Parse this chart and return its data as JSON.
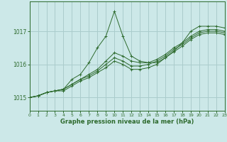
{
  "title": "Graphe pression niveau de la mer (hPa)",
  "bg_color": "#cce8e8",
  "grid_color": "#aacccc",
  "line_color": "#2d6a2d",
  "xlim": [
    0,
    23
  ],
  "ylim": [
    1014.6,
    1017.9
  ],
  "yticks": [
    1015,
    1016,
    1017
  ],
  "xticks": [
    0,
    1,
    2,
    3,
    4,
    5,
    6,
    7,
    8,
    9,
    10,
    11,
    12,
    13,
    14,
    15,
    16,
    17,
    18,
    19,
    20,
    21,
    22,
    23
  ],
  "series": [
    [
      1015.0,
      1015.05,
      1015.15,
      1015.2,
      1015.25,
      1015.55,
      1015.7,
      1016.05,
      1016.5,
      1016.85,
      1017.6,
      1016.85,
      1016.25,
      1016.1,
      1016.05,
      1016.05,
      1016.2,
      1016.4,
      1016.65,
      1017.0,
      1017.15,
      1017.15,
      1017.15,
      1017.1
    ],
    [
      1015.0,
      1015.05,
      1015.15,
      1015.2,
      1015.25,
      1015.4,
      1015.55,
      1015.7,
      1015.85,
      1016.1,
      1016.35,
      1016.25,
      1016.1,
      1016.05,
      1016.05,
      1016.15,
      1016.3,
      1016.5,
      1016.65,
      1016.85,
      1017.0,
      1017.05,
      1017.05,
      1017.0
    ],
    [
      1015.0,
      1015.05,
      1015.15,
      1015.2,
      1015.25,
      1015.4,
      1015.55,
      1015.65,
      1015.8,
      1016.0,
      1016.2,
      1016.1,
      1015.95,
      1015.95,
      1016.0,
      1016.1,
      1016.25,
      1016.45,
      1016.6,
      1016.8,
      1016.95,
      1017.0,
      1017.0,
      1016.95
    ],
    [
      1015.0,
      1015.05,
      1015.15,
      1015.2,
      1015.2,
      1015.35,
      1015.5,
      1015.6,
      1015.75,
      1015.9,
      1016.1,
      1016.0,
      1015.85,
      1015.85,
      1015.9,
      1016.0,
      1016.2,
      1016.38,
      1016.55,
      1016.75,
      1016.9,
      1016.95,
      1016.95,
      1016.9
    ]
  ]
}
